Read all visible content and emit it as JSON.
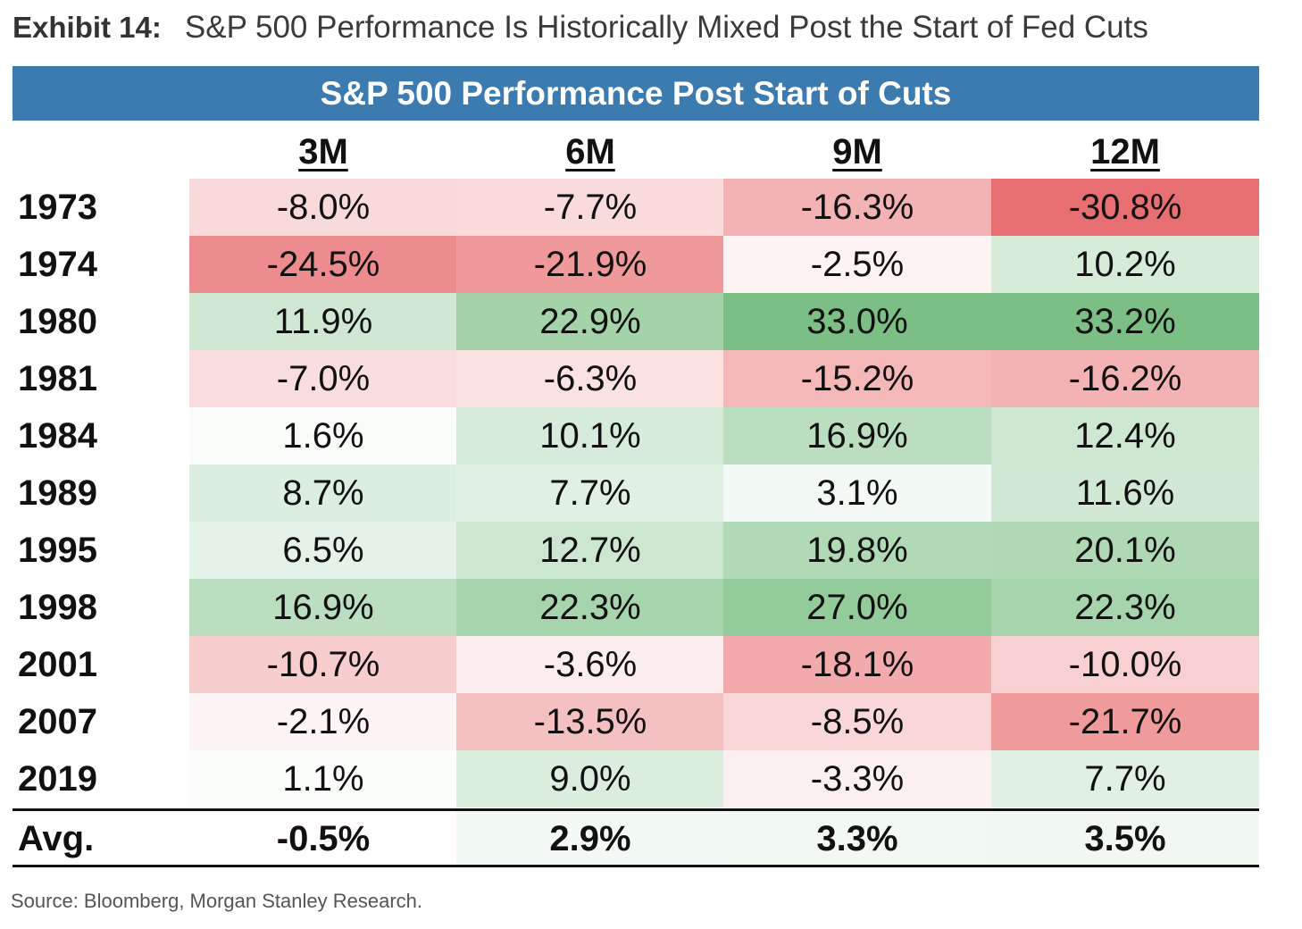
{
  "exhibit": {
    "label": "Exhibit 14:",
    "title": "S&P 500 Performance Is Historically Mixed Post the Start of Fed Cuts"
  },
  "source": "Source: Bloomberg, Morgan Stanley Research.",
  "colors": {
    "banner": "#3b7baf",
    "negative_strong": "#e87070",
    "positive_strong": "#7bbf84",
    "neutral": "#ffffff"
  },
  "chart_data": {
    "type": "table",
    "title": "S&P 500 Performance Post Start of Cuts",
    "columns": [
      "3M",
      "6M",
      "9M",
      "12M"
    ],
    "rows": [
      {
        "year": "1973",
        "values": [
          -8.0,
          -7.7,
          -16.3,
          -30.8
        ],
        "labels": [
          "-8.0%",
          "-7.7%",
          "-16.3%",
          "-30.8%"
        ]
      },
      {
        "year": "1974",
        "values": [
          -24.5,
          -21.9,
          -2.5,
          10.2
        ],
        "labels": [
          "-24.5%",
          "-21.9%",
          "-2.5%",
          "10.2%"
        ]
      },
      {
        "year": "1980",
        "values": [
          11.9,
          22.9,
          33.0,
          33.2
        ],
        "labels": [
          "11.9%",
          "22.9%",
          "33.0%",
          "33.2%"
        ]
      },
      {
        "year": "1981",
        "values": [
          -7.0,
          -6.3,
          -15.2,
          -16.2
        ],
        "labels": [
          "-7.0%",
          "-6.3%",
          "-15.2%",
          "-16.2%"
        ]
      },
      {
        "year": "1984",
        "values": [
          1.6,
          10.1,
          16.9,
          12.4
        ],
        "labels": [
          "1.6%",
          "10.1%",
          "16.9%",
          "12.4%"
        ]
      },
      {
        "year": "1989",
        "values": [
          8.7,
          7.7,
          3.1,
          11.6
        ],
        "labels": [
          "8.7%",
          "7.7%",
          "3.1%",
          "11.6%"
        ]
      },
      {
        "year": "1995",
        "values": [
          6.5,
          12.7,
          19.8,
          20.1
        ],
        "labels": [
          "6.5%",
          "12.7%",
          "19.8%",
          "20.1%"
        ]
      },
      {
        "year": "1998",
        "values": [
          16.9,
          22.3,
          27.0,
          22.3
        ],
        "labels": [
          "16.9%",
          "22.3%",
          "27.0%",
          "22.3%"
        ]
      },
      {
        "year": "2001",
        "values": [
          -10.7,
          -3.6,
          -18.1,
          -10.0
        ],
        "labels": [
          "-10.7%",
          "-3.6%",
          "-18.1%",
          "-10.0%"
        ]
      },
      {
        "year": "2007",
        "values": [
          -2.1,
          -13.5,
          -8.5,
          -21.7
        ],
        "labels": [
          "-2.1%",
          "-13.5%",
          "-8.5%",
          "-21.7%"
        ]
      },
      {
        "year": "2019",
        "values": [
          1.1,
          9.0,
          -3.3,
          7.7
        ],
        "labels": [
          "1.1%",
          "9.0%",
          "-3.3%",
          "7.7%"
        ]
      }
    ],
    "average": {
      "label": "Avg.",
      "values": [
        -0.5,
        2.9,
        3.3,
        3.5
      ],
      "labels": [
        "-0.5%",
        "2.9%",
        "3.3%",
        "3.5%"
      ]
    }
  }
}
